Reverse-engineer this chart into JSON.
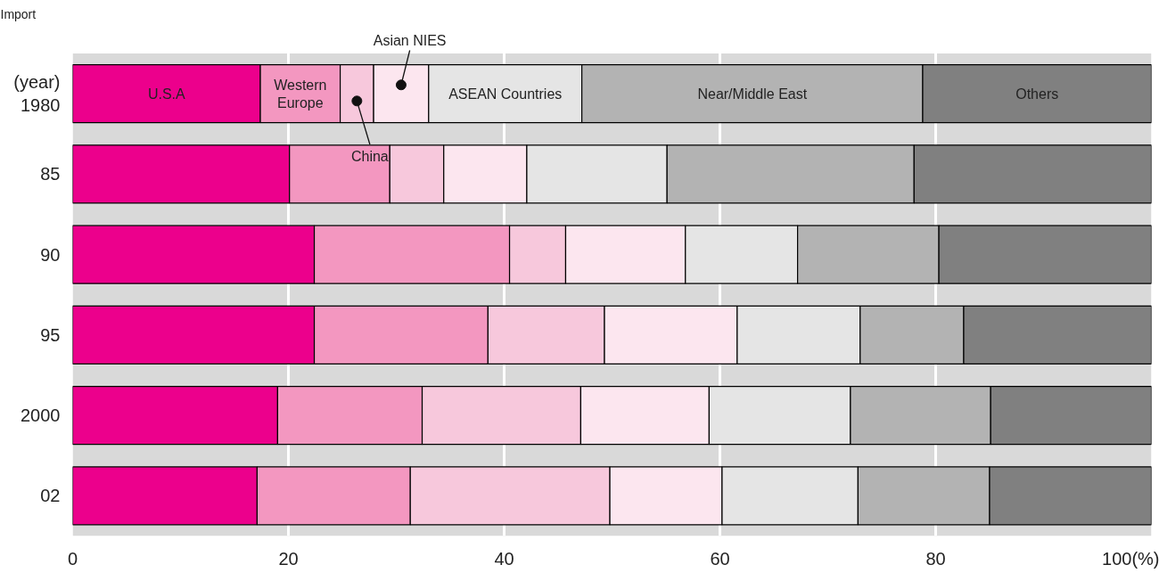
{
  "chart_data": {
    "type": "bar",
    "orientation": "horizontal",
    "stacked": true,
    "title": "Import",
    "ylabel": "(year)",
    "categories": [
      "1980",
      "85",
      "90",
      "95",
      "2000",
      "02"
    ],
    "xlim": [
      0,
      100
    ],
    "xticks": [
      0,
      20,
      40,
      60,
      80,
      {
        "value": 100,
        "label": "100(%)"
      }
    ],
    "grid": "x",
    "series": [
      {
        "name": "U.S.A",
        "color": "#ec008c",
        "values": [
          17.4,
          20.1,
          22.4,
          22.4,
          19.0,
          17.1
        ]
      },
      {
        "name": "Western Europe",
        "color": "#f397c0",
        "values": [
          7.4,
          9.3,
          18.1,
          16.1,
          13.4,
          14.2
        ]
      },
      {
        "name": "China",
        "color": "#f7c8dc",
        "values": [
          3.1,
          5.0,
          5.2,
          10.8,
          14.7,
          18.5
        ]
      },
      {
        "name": "Asian NIES",
        "color": "#fce6ef",
        "values": [
          5.1,
          7.7,
          11.1,
          12.3,
          11.9,
          10.4
        ]
      },
      {
        "name": "ASEAN Countries",
        "color": "#e5e5e5",
        "values": [
          14.2,
          13.0,
          10.4,
          11.4,
          13.1,
          12.6
        ]
      },
      {
        "name": "Near/Middle East",
        "color": "#b3b3b3",
        "values": [
          31.6,
          22.9,
          13.1,
          9.6,
          13.0,
          12.2
        ]
      },
      {
        "name": "Others",
        "color": "#808080",
        "values": [
          21.2,
          22.0,
          19.7,
          17.4,
          14.9,
          15.0
        ]
      }
    ]
  }
}
